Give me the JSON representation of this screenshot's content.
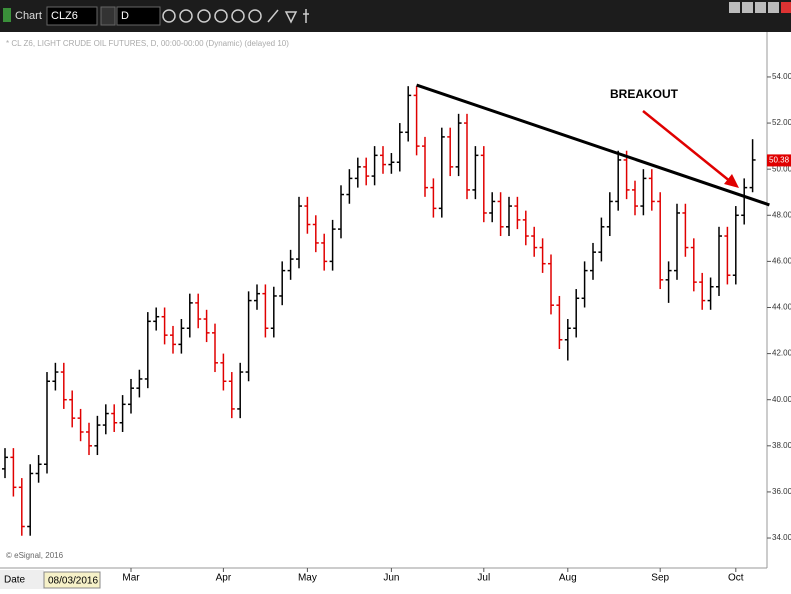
{
  "window": {
    "app": "Chart",
    "symbol": "CLZ6",
    "interval": "D",
    "date_label": "Date",
    "date_value": "08/03/2016",
    "copyright": "© eSignal, 2016"
  },
  "chart_data": {
    "type": "ohlc",
    "title": "* CL Z6, LIGHT CRUDE OIL FUTURES, D, 00:00-00:00 (Dynamic) (delayed 10)",
    "categories": [
      null,
      null,
      null,
      null,
      null,
      null,
      null,
      null,
      null,
      null,
      null,
      null,
      null,
      null,
      null,
      "Mar",
      null,
      null,
      null,
      null,
      null,
      null,
      null,
      null,
      null,
      null,
      "Apr",
      null,
      null,
      null,
      null,
      null,
      null,
      null,
      null,
      null,
      "May",
      null,
      null,
      null,
      null,
      null,
      null,
      null,
      null,
      null,
      "Jun",
      null,
      null,
      null,
      null,
      null,
      null,
      null,
      null,
      null,
      null,
      "Jul",
      null,
      null,
      null,
      null,
      null,
      null,
      null,
      null,
      null,
      "Aug",
      null,
      null,
      null,
      null,
      null,
      null,
      null,
      null,
      null,
      null,
      "Sep",
      null,
      null,
      null,
      null,
      null,
      null,
      null,
      null,
      "Oct",
      null,
      null
    ],
    "open": [
      37.0,
      37.5,
      36.2,
      34.5,
      36.8,
      37.2,
      40.8,
      41.2,
      40.0,
      39.2,
      38.6,
      38.0,
      38.9,
      39.4,
      39.0,
      39.8,
      40.5,
      40.9,
      43.4,
      43.6,
      42.8,
      42.4,
      43.1,
      44.2,
      43.5,
      42.9,
      41.6,
      40.8,
      39.6,
      41.2,
      44.3,
      44.6,
      43.1,
      44.5,
      45.6,
      46.1,
      48.4,
      47.6,
      46.8,
      46.0,
      47.4,
      48.9,
      49.6,
      50.1,
      49.7,
      50.6,
      50.2,
      50.3,
      51.6,
      53.2,
      51.0,
      49.2,
      48.3,
      51.4,
      50.1,
      52.0,
      49.1,
      50.6,
      48.1,
      48.6,
      47.5,
      48.4,
      47.8,
      47.1,
      46.6,
      45.9,
      44.1,
      42.6,
      43.1,
      44.4,
      45.6,
      46.4,
      47.5,
      48.6,
      50.4,
      49.1,
      48.4,
      49.6,
      48.6,
      45.2,
      45.6,
      48.1,
      46.6,
      45.1,
      44.3,
      44.9,
      47.1,
      45.4,
      48.0,
      49.2
    ],
    "high": [
      37.9,
      37.9,
      36.6,
      37.2,
      37.6,
      41.2,
      41.6,
      41.6,
      40.4,
      39.6,
      39.0,
      39.3,
      39.8,
      39.8,
      40.2,
      40.9,
      41.3,
      43.8,
      44.0,
      44.0,
      43.2,
      43.5,
      44.6,
      44.6,
      43.9,
      43.3,
      42.0,
      41.2,
      41.6,
      44.7,
      45.0,
      45.0,
      44.9,
      46.0,
      46.5,
      48.8,
      48.8,
      48.0,
      47.2,
      47.8,
      49.3,
      50.0,
      50.5,
      50.5,
      51.0,
      51.0,
      50.7,
      52.0,
      53.6,
      53.6,
      51.4,
      49.6,
      51.8,
      51.8,
      52.4,
      52.4,
      51.0,
      51.0,
      49.0,
      49.0,
      48.8,
      48.8,
      48.2,
      47.5,
      47.0,
      46.3,
      44.5,
      43.5,
      44.8,
      46.0,
      46.8,
      47.9,
      49.0,
      50.8,
      50.8,
      49.5,
      50.0,
      50.0,
      49.0,
      46.0,
      48.5,
      48.5,
      47.0,
      45.5,
      45.3,
      47.5,
      47.5,
      48.4,
      49.6,
      51.3
    ],
    "low": [
      36.6,
      35.8,
      34.1,
      34.1,
      36.4,
      36.8,
      40.4,
      39.6,
      38.8,
      38.2,
      37.6,
      37.6,
      38.5,
      38.6,
      38.6,
      39.4,
      40.1,
      40.5,
      43.0,
      42.4,
      42.0,
      42.0,
      42.7,
      43.1,
      42.5,
      41.2,
      40.4,
      39.2,
      39.2,
      40.8,
      43.9,
      42.7,
      42.7,
      44.1,
      45.2,
      45.7,
      47.2,
      46.4,
      45.6,
      45.6,
      47.0,
      48.5,
      49.2,
      49.3,
      49.3,
      49.8,
      49.8,
      49.9,
      51.2,
      50.6,
      48.8,
      47.9,
      47.9,
      49.7,
      49.7,
      48.7,
      48.7,
      47.7,
      47.7,
      47.1,
      47.1,
      47.4,
      46.7,
      46.2,
      45.5,
      43.7,
      42.2,
      41.7,
      42.7,
      44.0,
      45.2,
      46.0,
      47.1,
      48.2,
      48.7,
      48.0,
      48.0,
      48.2,
      44.8,
      44.2,
      45.2,
      46.2,
      44.7,
      43.9,
      43.9,
      44.5,
      45.0,
      45.0,
      47.6,
      49.0
    ],
    "close": [
      37.5,
      36.2,
      34.5,
      36.8,
      37.2,
      40.8,
      41.2,
      40.0,
      39.2,
      38.6,
      38.0,
      38.9,
      39.4,
      39.0,
      39.8,
      40.5,
      40.9,
      43.4,
      43.6,
      42.8,
      42.4,
      43.1,
      44.2,
      43.5,
      42.9,
      41.6,
      40.8,
      39.6,
      41.2,
      44.3,
      44.6,
      43.1,
      44.5,
      45.6,
      46.1,
      48.4,
      47.6,
      46.8,
      46.0,
      47.4,
      48.9,
      49.6,
      50.1,
      49.7,
      50.6,
      50.2,
      50.3,
      51.6,
      53.2,
      51.0,
      49.2,
      48.3,
      51.4,
      50.1,
      52.0,
      49.1,
      50.6,
      48.1,
      48.6,
      47.5,
      48.4,
      47.8,
      47.1,
      46.6,
      45.9,
      44.1,
      42.6,
      43.1,
      44.4,
      45.6,
      46.4,
      47.5,
      48.6,
      50.4,
      49.1,
      48.4,
      49.6,
      48.6,
      45.2,
      45.6,
      48.1,
      46.6,
      45.1,
      44.3,
      44.9,
      47.1,
      45.4,
      48.0,
      49.2,
      50.4
    ],
    "up_color": "#000000",
    "down_color": "#e00000",
    "ylim": [
      32.7,
      55.95
    ],
    "yticks": [
      {
        "value": 34,
        "label": "34.00"
      },
      {
        "value": 36,
        "label": "36.00"
      },
      {
        "value": 38,
        "label": "38.00"
      },
      {
        "value": 40,
        "label": "40.00"
      },
      {
        "value": 42,
        "label": "42.00"
      },
      {
        "value": 44,
        "label": "44.00"
      },
      {
        "value": 46,
        "label": "46.00"
      },
      {
        "value": 48,
        "label": "48.00"
      },
      {
        "value": 50,
        "label": "50.00"
      },
      {
        "value": 52,
        "label": "52.00"
      },
      {
        "value": 54,
        "label": "54.00"
      }
    ],
    "last_price": 50.38,
    "trendline": {
      "x": [
        49,
        91
      ],
      "y": [
        53.65,
        48.45
      ]
    },
    "annotation": "BREAKOUT"
  }
}
